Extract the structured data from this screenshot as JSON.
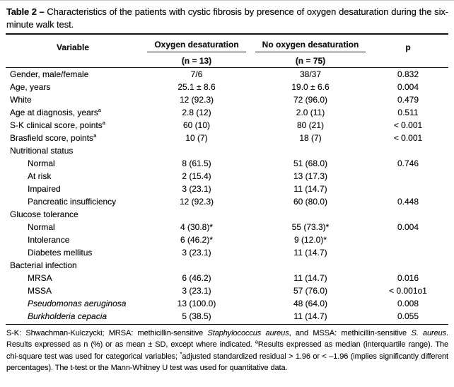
{
  "title": {
    "label": "Table 2 –",
    "caption": " Characteristics of the patients with cystic fibrosis by presence of oxygen desaturation during the six-minute walk test."
  },
  "header": {
    "col_variable": "Variable",
    "col_group1": "Oxygen desaturation",
    "col_group1_n": "(n = 13)",
    "col_group2": "No oxygen desaturation",
    "col_group2_n": "(n = 75)",
    "col_p": "p"
  },
  "rows": [
    {
      "label": "Gender, male/female",
      "v1": "7/6",
      "v2": "38/37",
      "p": "0.832"
    },
    {
      "label": "Age, years",
      "v1": "25.1 ± 8.6",
      "v2": "19.0 ± 6.6",
      "p": "0.004"
    },
    {
      "label": "White",
      "v1": "12 (92.3)",
      "v2": "72 (96.0)",
      "p": "0.479"
    },
    {
      "label": "Age at diagnosis, years",
      "sup": "a",
      "v1": "2.8 (12)",
      "v2": "2.0 (11)",
      "p": "0.511"
    },
    {
      "label": "S-K clinical score, points",
      "sup": "a",
      "v1": "60 (10)",
      "v2": "80 (21)",
      "p": "< 0.001"
    },
    {
      "label": "Brasfield score, points",
      "sup": "a",
      "v1": "10 (7)",
      "v2": "18 (7)",
      "p": "< 0.001"
    },
    {
      "label": "Nutritional status",
      "v1": "",
      "v2": "",
      "p": ""
    },
    {
      "label": "Normal",
      "v1": "8 (61.5)",
      "v2": "51 (68.0)",
      "p": "0.746"
    },
    {
      "label": "At risk",
      "v1": "2 (15.4)",
      "v2": "13 (17.3)",
      "p": ""
    },
    {
      "label": "Impaired",
      "v1": "3 (23.1)",
      "v2": "11 (14.7)",
      "p": ""
    },
    {
      "label": "Pancreatic insufficiency",
      "v1": "12 (92.3)",
      "v2": "60 (80.0)",
      "p": "0.448"
    },
    {
      "label": "Glucose tolerance",
      "v1": "",
      "v2": "",
      "p": ""
    },
    {
      "label": "Normal",
      "v1": "4 (30.8)*",
      "v2": "55 (73.3)*",
      "p": "0.004"
    },
    {
      "label": "Intolerance",
      "v1": "6 (46.2)*",
      "v2": "9 (12.0)*",
      "p": ""
    },
    {
      "label": "Diabetes mellitus",
      "v1": "3 (23.1)",
      "v2": "11 (14.7)",
      "p": ""
    },
    {
      "label": "Bacterial infection",
      "v1": "",
      "v2": "",
      "p": ""
    },
    {
      "label": "MRSA",
      "v1": "6 (46.2)",
      "v2": "11 (14.7)",
      "p": "0.016"
    },
    {
      "label": "MSSA",
      "v1": "3 (23.1)",
      "v2": "57 (76.0)",
      "p": "< 0.001o1"
    },
    {
      "label": "Pseudomonas aeruginosa",
      "v1": "13 (100.0)",
      "v2": "48 (64.0)",
      "p": "0.008"
    },
    {
      "label": "Burkholderia cepacia",
      "v1": "5 (38.5)",
      "v2": "11 (14.7)",
      "p": "0.055"
    }
  ],
  "footnote": {
    "seg1": "S-K: Shwachman-Kulczycki; MRSA: methicillin-sensitive ",
    "seg2_italic": "Staphylococcus aureus",
    "seg3": ", and MSSA: methicillin-sensitive ",
    "seg4_italic": "S. aureus",
    "seg5": ". Results expressed as n (%) or as mean ± SD, except where indicated. ",
    "seg6_sup": "a",
    "seg7": "Results expressed as median (interquartile range). The chi-square test was used for categorical variables; ",
    "seg8_sup": "*",
    "seg9": "adjusted standardized residual > 1.96 or < –1.96 (implies significantly different percentages). The t-test or the Mann-Whitney U test was used for quantitative data."
  }
}
